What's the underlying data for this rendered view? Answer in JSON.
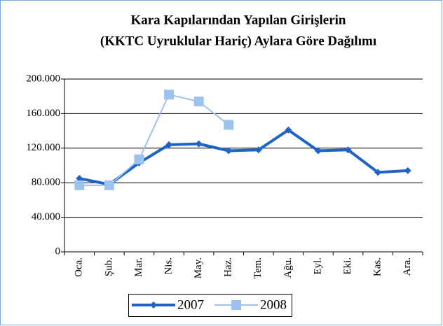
{
  "chart_data": {
    "type": "line",
    "title": [
      "Kara Kapılarından Yapılan Girişlerin",
      "(KKTC Uyruklular Hariç) Aylara Göre Dağılımı"
    ],
    "categories": [
      "Oca.",
      "Şub.",
      "Mar.",
      "Nis.",
      "May.",
      "Haz.",
      "Tem.",
      "Ağu.",
      "Eyl.",
      "Eki.",
      "Kas.",
      "Ara."
    ],
    "series": [
      {
        "name": "2007",
        "color": "#1f63c6",
        "marker": "diamond",
        "line_width": 4,
        "values": [
          85000,
          78000,
          103000,
          124000,
          125000,
          117000,
          118000,
          141000,
          117000,
          118000,
          92000,
          94000
        ]
      },
      {
        "name": "2008",
        "color": "#9cc2f0",
        "marker": "square",
        "line_width": 2,
        "values": [
          77000,
          77000,
          107000,
          182000,
          174000,
          147000,
          null,
          null,
          null,
          null,
          null,
          null
        ]
      }
    ],
    "ylim": [
      0,
      200000
    ],
    "yticks": [
      0,
      {
        "value": 40000,
        "label": "40.000"
      },
      {
        "value": 80000,
        "label": "80.000"
      },
      {
        "value": 120000,
        "label": "120.000"
      },
      {
        "value": 160000,
        "label": "160.000"
      },
      {
        "value": 200000,
        "label": "200.000"
      }
    ],
    "grid": true,
    "legend": "bottom"
  }
}
